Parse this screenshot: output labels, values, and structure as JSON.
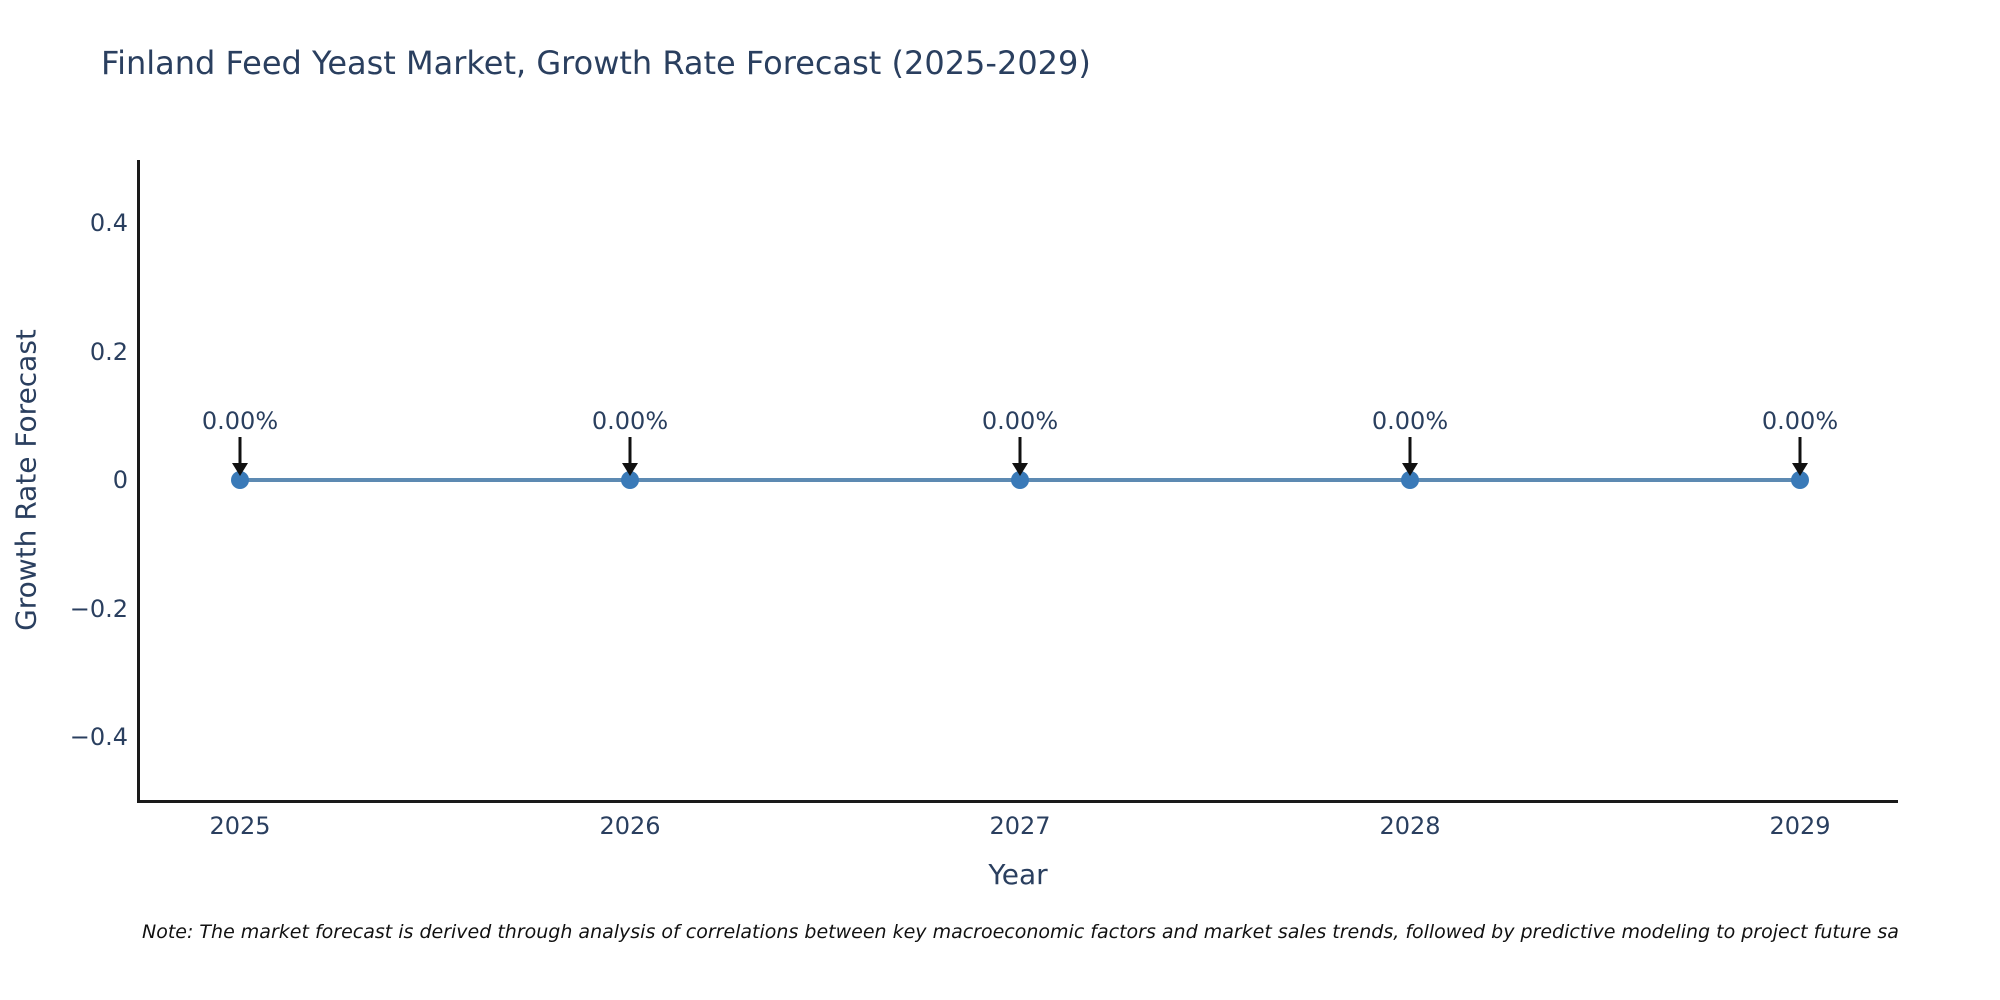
{
  "chart_data": {
    "type": "line",
    "title": "Finland Feed Yeast Market, Growth Rate Forecast (2025-2029)",
    "xlabel": "Year",
    "ylabel": "Growth Rate Forecast",
    "x": [
      2025,
      2026,
      2027,
      2028,
      2029
    ],
    "series": [
      {
        "name": "Growth Rate Forecast",
        "values": [
          0,
          0,
          0,
          0,
          0
        ],
        "point_labels": [
          "0.00%",
          "0.00%",
          "0.00%",
          "0.00%",
          "0.00%"
        ]
      }
    ],
    "xticks": [
      "2025",
      "2026",
      "2027",
      "2028",
      "2029"
    ],
    "yticks": [
      "0.4",
      "0.2",
      "0",
      "−0.2",
      "−0.4"
    ],
    "ytick_values": [
      0.4,
      0.2,
      0,
      -0.2,
      -0.4
    ],
    "ylim": [
      -0.5,
      0.5
    ],
    "grid": false,
    "legend_position": "none",
    "colors": {
      "line": "#5d8ab2",
      "marker": "#3a7ab8",
      "arrow": "#111111",
      "text": "#2a3f5f",
      "axis": "#1a1a1a",
      "background": "#ffffff"
    }
  },
  "note": {
    "text": "Note: The market forecast is derived through analysis of correlations between key macroeconomic factors and market sales trends, followed by predictive modeling to project future sa"
  }
}
